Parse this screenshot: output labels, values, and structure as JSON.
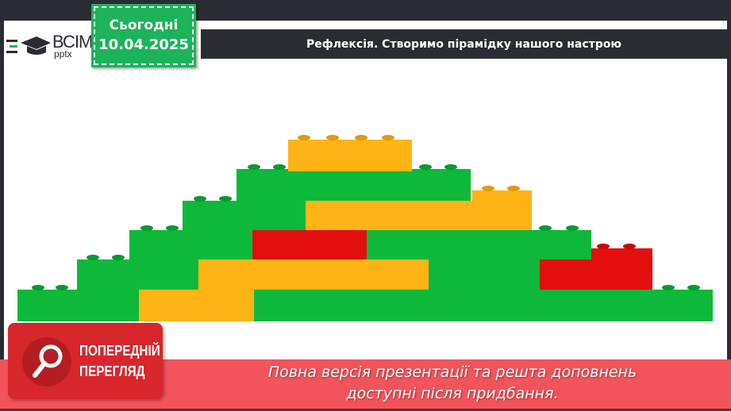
{
  "logo": {
    "main": "ВСІМ",
    "sub": "pptx"
  },
  "date": {
    "label": "Сьогодні",
    "value": "10.04.2025"
  },
  "title": "Рефлексія. Створимо пірамідку нашого настрою",
  "colors": {
    "green": "#0db83a",
    "orange": "#fdb414",
    "red": "#e30e0e",
    "banner": "#f3545c",
    "dark": "#2a2c33"
  },
  "preview": {
    "line1": "ПОПЕРЕДНІЙ",
    "line2": "ПЕРЕГЛЯД",
    "icon": "magnifier-icon"
  },
  "banner": {
    "line1": "Повна версія презентації та решта доповнень",
    "line2": "доступні після придбання."
  }
}
